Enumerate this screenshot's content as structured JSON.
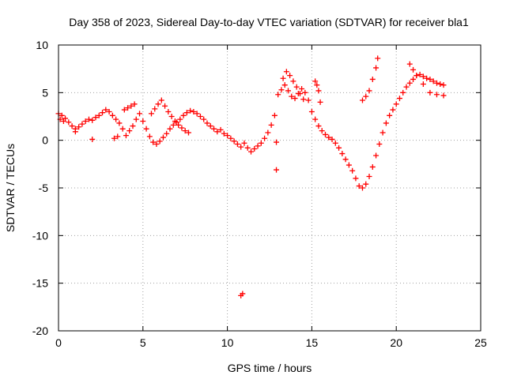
{
  "chart_data": {
    "type": "scatter",
    "title": "Day 358 of 2023, Sidereal Day-to-day VTEC variation (SDTVAR) for receiver bla1",
    "xlabel": "GPS time / hours",
    "ylabel": "SDTVAR / TECUs",
    "xlim": [
      0,
      25
    ],
    "ylim": [
      -20,
      10
    ],
    "xticks": [
      0,
      5,
      10,
      15,
      20,
      25
    ],
    "yticks": [
      -20,
      -15,
      -10,
      -5,
      0,
      5,
      10
    ],
    "grid": true,
    "marker": "+",
    "series": [
      {
        "name": "SDTVAR",
        "color": "#ff0000",
        "x": [
          0.0,
          0.2,
          0.4,
          0.6,
          0.8,
          1.0,
          1.2,
          1.4,
          1.6,
          1.8,
          2.0,
          2.2,
          2.4,
          2.6,
          2.8,
          3.0,
          3.2,
          3.4,
          3.6,
          3.8,
          4.0,
          4.2,
          4.4,
          4.6,
          4.8,
          5.0,
          5.2,
          5.4,
          5.6,
          5.8,
          6.0,
          6.2,
          6.4,
          6.6,
          6.8,
          7.0,
          7.2,
          7.4,
          7.6,
          7.8,
          8.0,
          8.2,
          8.4,
          8.6,
          8.8,
          9.0,
          9.2,
          9.4,
          9.6,
          9.8,
          10.0,
          10.2,
          10.4,
          10.6,
          10.8,
          11.0,
          11.2,
          11.4,
          11.6,
          11.8,
          12.0,
          12.2,
          12.4,
          12.6,
          12.8,
          13.0,
          13.2,
          13.4,
          13.6,
          13.8,
          14.0,
          14.2,
          14.4,
          14.6,
          14.8,
          15.0,
          15.2,
          15.4,
          15.6,
          15.8,
          16.0,
          16.2,
          16.4,
          16.6,
          16.8,
          17.0,
          17.2,
          17.4,
          17.6,
          17.8,
          18.0,
          18.2,
          18.4,
          18.6,
          18.8,
          19.0,
          19.2,
          19.4,
          19.6,
          19.8,
          20.0,
          20.2,
          20.4,
          20.6,
          20.8,
          21.0,
          21.2,
          21.4,
          21.6,
          21.8,
          22.0,
          22.2,
          22.4,
          22.6,
          22.8,
          3.9,
          4.1,
          4.3,
          4.5,
          5.5,
          5.7,
          5.9,
          6.1,
          6.3,
          6.5,
          6.7,
          6.9,
          7.1,
          7.3,
          7.5,
          7.7,
          12.9,
          13.3,
          13.5,
          13.7,
          13.9,
          14.1,
          14.3,
          14.5,
          15.2,
          15.3,
          15.4,
          15.5,
          18.0,
          18.2,
          18.4,
          18.6,
          18.8,
          18.9,
          20.8,
          21.0,
          21.2,
          21.6,
          22.0,
          22.4,
          22.8,
          10.8,
          10.9,
          3.3,
          3.5,
          12.9,
          1.0,
          2.0,
          0.1,
          0.3
        ],
        "y": [
          2.8,
          2.6,
          2.3,
          1.9,
          1.5,
          1.2,
          1.4,
          1.7,
          2.0,
          2.2,
          2.1,
          2.4,
          2.6,
          2.9,
          3.2,
          3.0,
          2.6,
          2.2,
          1.8,
          1.2,
          0.5,
          1.0,
          1.5,
          2.2,
          2.8,
          2.0,
          1.2,
          0.4,
          -0.2,
          -0.4,
          -0.1,
          0.3,
          0.7,
          1.2,
          1.6,
          1.9,
          2.2,
          2.6,
          2.9,
          3.1,
          3.0,
          2.8,
          2.5,
          2.2,
          1.8,
          1.5,
          1.2,
          0.9,
          1.1,
          0.7,
          0.5,
          0.2,
          -0.1,
          -0.4,
          -0.7,
          -0.3,
          -0.8,
          -1.2,
          -0.9,
          -0.6,
          -0.3,
          0.2,
          0.8,
          1.6,
          2.6,
          4.8,
          5.3,
          5.8,
          5.2,
          4.6,
          4.4,
          4.9,
          5.4,
          5.0,
          4.2,
          3.0,
          2.2,
          1.5,
          1.0,
          0.6,
          0.3,
          0.1,
          -0.3,
          -0.8,
          -1.4,
          -2.0,
          -2.6,
          -3.2,
          -4.0,
          -4.8,
          -5.0,
          -4.6,
          -3.8,
          -2.8,
          -1.6,
          -0.4,
          0.8,
          1.8,
          2.6,
          3.2,
          3.8,
          4.4,
          5.0,
          5.6,
          6.0,
          6.4,
          6.8,
          6.9,
          6.7,
          6.5,
          6.4,
          6.2,
          6.0,
          5.9,
          5.8,
          3.2,
          3.4,
          3.6,
          3.8,
          2.8,
          3.3,
          3.8,
          4.2,
          3.6,
          3.0,
          2.5,
          2.0,
          1.6,
          1.3,
          1.0,
          0.8,
          -0.2,
          6.5,
          7.2,
          6.8,
          6.2,
          5.6,
          4.9,
          4.3,
          6.2,
          5.8,
          5.2,
          4.0,
          4.2,
          4.6,
          5.2,
          6.4,
          7.6,
          8.6,
          8.0,
          7.4,
          6.8,
          5.9,
          5.0,
          4.8,
          4.7,
          -16.3,
          -16.1,
          0.2,
          0.4,
          -3.1,
          0.9,
          0.1,
          2.2,
          2.0
        ]
      }
    ]
  }
}
